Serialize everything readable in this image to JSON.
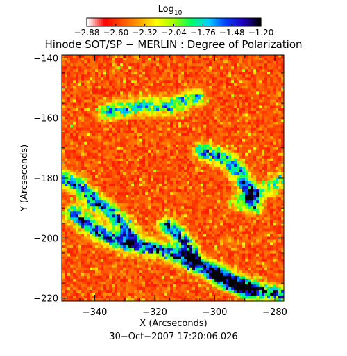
{
  "chart_data": {
    "type": "heatmap",
    "title": "Hinode SOT/SP − MERLIN : Degree of Polarization",
    "xlabel": "X (Arcseconds)",
    "ylabel": "Y (Arcseconds)",
    "xlim": [
      -351,
      -277
    ],
    "ylim": [
      -221,
      -139
    ],
    "x_ticks": [
      -340,
      -320,
      -300,
      -280
    ],
    "x_tick_labels": [
      "−340",
      "−320",
      "−300",
      "−280"
    ],
    "y_ticks": [
      -140,
      -160,
      -180,
      -200,
      -220
    ],
    "y_tick_labels": [
      "−140",
      "−160",
      "−180",
      "−200",
      "−220"
    ],
    "colorbar": {
      "label_base": "Log",
      "label_sub": "10",
      "range": [
        -2.88,
        -1.2
      ],
      "ticks": [
        -2.88,
        -2.6,
        -2.32,
        -2.04,
        -1.76,
        -1.48,
        -1.2
      ],
      "tick_labels": [
        "−2.88",
        "−2.60",
        "−2.32",
        "−2.04",
        "−1.76",
        "−1.48",
        "−1.20"
      ]
    },
    "colormap": [
      "#ffffff",
      "#ff0000",
      "#ff5000",
      "#ffa000",
      "#ffff00",
      "#a0ff00",
      "#00ff60",
      "#00d0ff",
      "#0040ff",
      "#2000c0",
      "#000000"
    ],
    "feature_lanes": [
      {
        "x": [
          -347,
          -339,
          -330,
          -322,
          -312,
          -304,
          -296,
          -288,
          -282,
          -278
        ],
        "y": [
          -192,
          -198,
          -202,
          -203,
          -206,
          -210,
          -214,
          -217,
          -218,
          -219
        ],
        "strength": 1.0
      },
      {
        "x": [
          -351,
          -345,
          -340,
          -335,
          -331,
          -328
        ],
        "y": [
          -180,
          -183,
          -188,
          -191,
          -195,
          -199
        ],
        "strength": 0.9
      },
      {
        "x": [
          -336,
          -330,
          -325,
          -320,
          -315,
          -309,
          -306
        ],
        "y": [
          -158,
          -157,
          -156,
          -156,
          -156,
          -154,
          -153
        ],
        "strength": 0.7
      },
      {
        "x": [
          -304,
          -296,
          -292,
          -290,
          -288,
          -287
        ],
        "y": [
          -171,
          -174,
          -178,
          -182,
          -185,
          -189
        ],
        "strength": 0.9
      },
      {
        "x": [
          -316,
          -312,
          -309,
          -307
        ],
        "y": [
          -196,
          -199,
          -203,
          -207
        ],
        "strength": 0.95
      },
      {
        "x": [
          -292,
          -286,
          -282,
          -278
        ],
        "y": [
          -188,
          -185,
          -183,
          -181
        ],
        "strength": 0.55
      },
      {
        "x": [
          -300,
          -296,
          -292,
          -289
        ],
        "y": [
          -211,
          -214,
          -216,
          -217
        ],
        "strength": 0.8
      }
    ],
    "grid": false
  },
  "footer": {
    "timestamp": "30−Oct−2007 17:20:06.026"
  }
}
